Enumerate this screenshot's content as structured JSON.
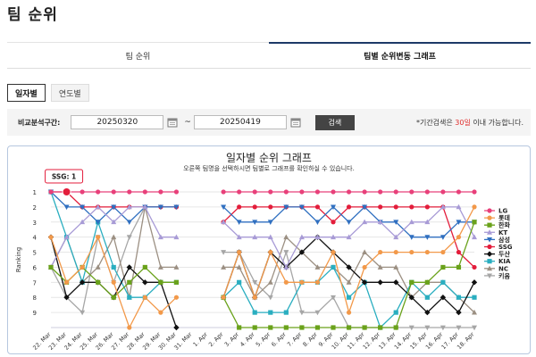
{
  "page_title": "팀 순위",
  "tabs": [
    {
      "label": "팀 순위",
      "active": false
    },
    {
      "label": "팀별 순위변동 그래프",
      "active": true
    }
  ],
  "sub_tabs": [
    {
      "label": "일자별",
      "active": true
    },
    {
      "label": "연도별",
      "active": false
    }
  ],
  "filter": {
    "label": "비교분석구간:",
    "start_date": "20250320",
    "end_date": "20250419",
    "separator": "~",
    "search_label": "검색",
    "note_prefix": "*기간검색은 ",
    "note_highlight": "30일",
    "note_suffix": " 이내 가능합니다."
  },
  "chart_title": "일자별 순위 그래프",
  "chart_subtitle": "오른쪽 팀명을 선택하시면 팀별로 그래프를 확인하실 수 있습니다.",
  "tooltip": "SSG: 1",
  "chart_data": {
    "type": "line",
    "ylabel": "Ranking",
    "y_ticks": [
      1,
      2,
      3,
      4,
      5,
      6,
      7,
      8,
      9
    ],
    "ylim": [
      1,
      10
    ],
    "y_inverted": true,
    "x": [
      "22. Mar",
      "23. Mar",
      "24. Mar",
      "25. Mar",
      "26. Mar",
      "27. Mar",
      "28. Mar",
      "29. Mar",
      "30. Mar",
      "31. Mar",
      "1. Apr",
      "2. Apr",
      "3. Apr",
      "4. Apr",
      "5. Apr",
      "6. Apr",
      "7. Apr",
      "8. Apr",
      "9. Apr",
      "10. Apr",
      "11. Apr",
      "12. Apr",
      "13. Apr",
      "14. Apr",
      "15. Apr",
      "16. Apr",
      "17. Apr",
      "18. Apr"
    ],
    "x_tick_labels": [
      "22. Mar",
      "23. Mar",
      "24. Mar",
      "25. Mar",
      "26. Mar",
      "27. Mar",
      "28. Mar",
      "29. Mar",
      "30. Mar",
      "31. Mar",
      "1. Apr",
      "2. Apr",
      "3. Apr",
      "4. Apr",
      "5. Apr",
      "6. Apr",
      "7. Apr",
      "8. Apr",
      "9. Apr",
      "10. Apr",
      "11. Apr",
      "12. Apr",
      "13. Apr",
      "14. Apr",
      "15. Apr",
      "16. Apr",
      "17. Apr",
      "18. Apr"
    ],
    "legend_position": "right",
    "series": [
      {
        "name": "LG",
        "color": "#e8407a",
        "marker": "circle",
        "values": [
          1,
          1,
          1,
          1,
          1,
          1,
          1,
          1,
          1,
          null,
          null,
          1,
          1,
          1,
          1,
          1,
          1,
          1,
          1,
          1,
          1,
          1,
          1,
          1,
          1,
          1,
          1,
          1
        ]
      },
      {
        "name": "롯데",
        "color": "#f2994a",
        "marker": "circle",
        "values": [
          4,
          7,
          6,
          4,
          7,
          10,
          8,
          9,
          8,
          null,
          null,
          8,
          5,
          8,
          5,
          7,
          7,
          7,
          5,
          9,
          6,
          5,
          5,
          5,
          5,
          5,
          4,
          2
        ]
      },
      {
        "name": "한화",
        "color": "#6aa21b",
        "marker": "square",
        "values": [
          6,
          7,
          6,
          7,
          8,
          7,
          6,
          7,
          7,
          null,
          null,
          8,
          10,
          10,
          10,
          10,
          10,
          10,
          10,
          10,
          10,
          10,
          10,
          7,
          7,
          6,
          6,
          3
        ]
      },
      {
        "name": "KT",
        "color": "#a89bd6",
        "marker": "triangle",
        "values": [
          6,
          4,
          3,
          2,
          3,
          2,
          2,
          4,
          4,
          null,
          null,
          3,
          4,
          4,
          4,
          6,
          4,
          4,
          4,
          4,
          3,
          3,
          4,
          3,
          3,
          2,
          2,
          4
        ]
      },
      {
        "name": "삼성",
        "color": "#2f6fc0",
        "marker": "triangle-down",
        "values": [
          1,
          2,
          2,
          3,
          2,
          3,
          2,
          2,
          2,
          null,
          null,
          2,
          3,
          3,
          3,
          2,
          2,
          3,
          2,
          3,
          2,
          3,
          3,
          4,
          4,
          4,
          3,
          3
        ]
      },
      {
        "name": "SSG",
        "color": "#e31d3b",
        "marker": "circle",
        "values": [
          1,
          1,
          2,
          2,
          2,
          2,
          2,
          2,
          2,
          null,
          null,
          3,
          2,
          2,
          2,
          2,
          2,
          2,
          3,
          2,
          2,
          2,
          2,
          2,
          2,
          2,
          5,
          6
        ]
      },
      {
        "name": "두산",
        "color": "#111111",
        "marker": "diamond",
        "values": [
          4,
          8,
          7,
          7,
          8,
          6,
          7,
          7,
          10,
          null,
          null,
          8,
          5,
          8,
          5,
          6,
          5,
          4,
          5,
          6,
          7,
          7,
          7,
          8,
          9,
          8,
          9,
          7
        ]
      },
      {
        "name": "KIA",
        "color": "#2aaec0",
        "marker": "square",
        "values": [
          1,
          4,
          7,
          3,
          6,
          8,
          8,
          7,
          7,
          null,
          null,
          8,
          7,
          9,
          9,
          9,
          7,
          7,
          6,
          8,
          7,
          10,
          9,
          7,
          8,
          7,
          8,
          8
        ]
      },
      {
        "name": "NC",
        "color": "#9b8f82",
        "marker": "triangle",
        "values": [
          6,
          4,
          7,
          6,
          4,
          8,
          2,
          6,
          6,
          null,
          null,
          6,
          6,
          8,
          7,
          4,
          5,
          6,
          6,
          7,
          5,
          6,
          6,
          8,
          7,
          7,
          8,
          9
        ]
      },
      {
        "name": "키움",
        "color": "#a6a6a6",
        "marker": "triangle-down",
        "values": [
          6,
          8,
          9,
          4,
          7,
          4,
          2,
          2,
          2,
          null,
          null,
          5,
          5,
          7,
          8,
          5,
          9,
          9,
          8,
          10,
          10,
          10,
          10,
          10,
          10,
          10,
          10,
          10
        ]
      }
    ]
  }
}
